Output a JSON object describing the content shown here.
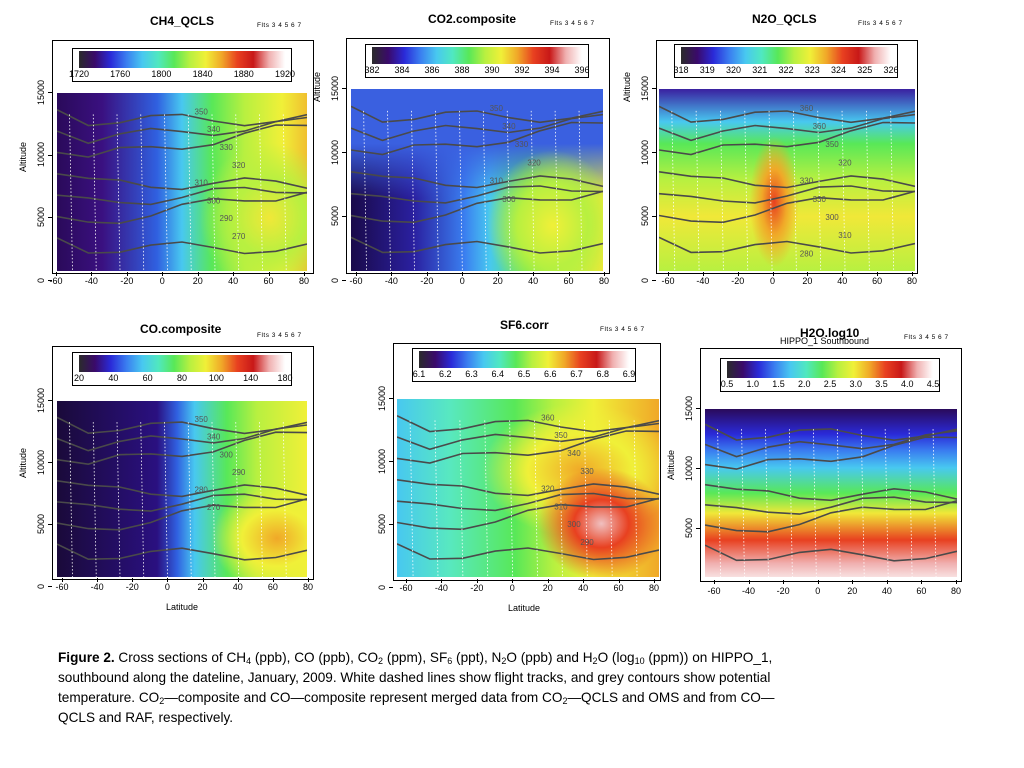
{
  "panels": [
    {
      "id": "ch4",
      "title": "CH4_QCLS",
      "subtitle": "",
      "flts": "Flts 3  4  5  6  7",
      "ylabel": "Altitude",
      "xlabel": "",
      "colorbar_ticks": [
        "1720",
        "1760",
        "1800",
        "1840",
        "1880",
        "1920"
      ],
      "xticks": [
        "-60",
        "-40",
        "-20",
        "0",
        "20",
        "40",
        "60",
        "80"
      ],
      "yticks": [
        "0",
        "5000",
        "10000",
        "15000"
      ],
      "contour_labels": [
        "350",
        "340",
        "330",
        "320",
        "310",
        "300",
        "290",
        "270"
      ],
      "palette": "rainbow_gray"
    },
    {
      "id": "co2",
      "title": "CO2.composite",
      "subtitle": "",
      "flts": "Flts 3  4  5  6  7",
      "ylabel": "Altitude",
      "xlabel": "",
      "colorbar_ticks": [
        "382",
        "384",
        "386",
        "388",
        "390",
        "392",
        "394",
        "396"
      ],
      "xticks": [
        "-60",
        "-40",
        "-20",
        "0",
        "20",
        "40",
        "60",
        "80"
      ],
      "yticks": [
        "0",
        "5000",
        "10000",
        "15000"
      ],
      "contour_labels": [
        "350",
        "340",
        "330",
        "320",
        "310",
        "300"
      ],
      "palette": "rainbow_gray"
    },
    {
      "id": "n2o",
      "title": "N2O_QCLS",
      "subtitle": "",
      "flts": "Flts 3  4  5  6  7",
      "ylabel": "Altitude",
      "xlabel": "",
      "colorbar_ticks": [
        "318",
        "319",
        "320",
        "321",
        "322",
        "323",
        "324",
        "325",
        "326"
      ],
      "xticks": [
        "-60",
        "-40",
        "-20",
        "0",
        "20",
        "40",
        "60",
        "80"
      ],
      "yticks": [
        "0",
        "5000",
        "10000",
        "15000"
      ],
      "contour_labels": [
        "360",
        "360",
        "350",
        "320",
        "330",
        "330",
        "300",
        "310",
        "280"
      ],
      "palette": "rainbow_gray"
    },
    {
      "id": "co",
      "title": "CO.composite",
      "subtitle": "",
      "flts": "Flts 3  4  5  6  7",
      "ylabel": "Altitude",
      "xlabel": "Latitude",
      "colorbar_ticks": [
        "20",
        "40",
        "60",
        "80",
        "100",
        "140",
        "180"
      ],
      "xticks": [
        "-60",
        "-40",
        "-20",
        "0",
        "20",
        "40",
        "60",
        "80"
      ],
      "yticks": [
        "0",
        "5000",
        "10000",
        "15000"
      ],
      "contour_labels": [
        "350",
        "340",
        "300",
        "290",
        "280",
        "270"
      ],
      "palette": "rainbow_gray"
    },
    {
      "id": "sf6",
      "title": "SF6.corr",
      "subtitle": "",
      "flts": "Flts 3  4  5  6  7",
      "ylabel": "",
      "xlabel": "Latitude",
      "colorbar_ticks": [
        "6.1",
        "6.2",
        "6.3",
        "6.4",
        "6.5",
        "6.6",
        "6.7",
        "6.8",
        "6.9"
      ],
      "xticks": [
        "-60",
        "-40",
        "-20",
        "0",
        "20",
        "40",
        "60",
        "80"
      ],
      "yticks": [
        "0",
        "5000",
        "10000",
        "15000"
      ],
      "contour_labels": [
        "360",
        "350",
        "340",
        "330",
        "320",
        "310",
        "300",
        "290"
      ],
      "palette": "rainbow_gray"
    },
    {
      "id": "h2o",
      "title": "H2O.log10",
      "subtitle": "HIPPO_1 Southbound",
      "flts": "Flts 3  4  5  6  7",
      "ylabel": "Altitude",
      "xlabel": "",
      "colorbar_ticks": [
        "0.5",
        "1.0",
        "1.5",
        "2.0",
        "2.5",
        "3.0",
        "3.5",
        "4.0",
        "4.5"
      ],
      "xticks": [
        "-60",
        "-40",
        "-20",
        "0",
        "20",
        "40",
        "60",
        "80"
      ],
      "yticks": [
        "5000",
        "10000",
        "15000"
      ],
      "contour_labels": [],
      "palette": "rainbow_gray"
    }
  ],
  "caption": {
    "label": "Figure 2.",
    "t1": " Cross sections of CH",
    "s1": "4",
    "t2": " (ppb), CO (ppb), CO",
    "s2": "2",
    "t3": " (ppm), SF",
    "s3": "6",
    "t4": " (ppt), N",
    "s4": "2",
    "t5": "O (ppb) and H",
    "s5": "2",
    "t6": "O (log",
    "s6": "10",
    "t7": " (ppm)) on HIPPO_1, southbound along the dateline, January, 2009.  White dashed lines show flight tracks, and grey contours show potential temperature.  CO",
    "s7": "2",
    "t8": "—composite and CO—composite represent merged data from CO",
    "s8": "2",
    "t9": "—QCLS and OMS and from CO—QCLS and RAF, respectively."
  },
  "colors": {
    "palette": [
      "#2b2b2b",
      "#3a0a6a",
      "#2a2ad8",
      "#3a7ef0",
      "#48c8f0",
      "#50e8c0",
      "#58e858",
      "#b8f040",
      "#f0f038",
      "#f0a828",
      "#e84020",
      "#c81818",
      "#f0b0b0",
      "#ffffff"
    ]
  }
}
